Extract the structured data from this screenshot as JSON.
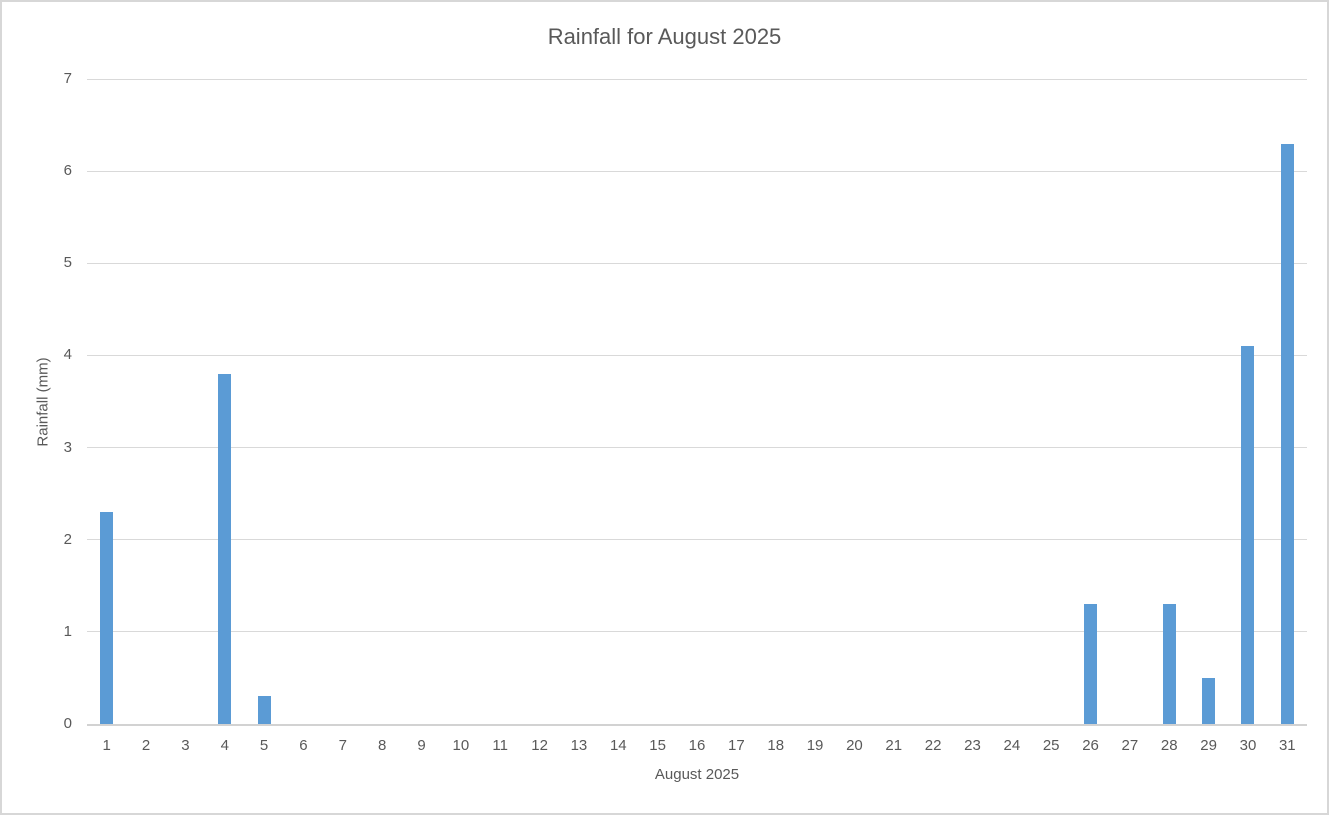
{
  "window": {
    "background_color": "#ffffff",
    "frame_border_color": "#d7d7d7"
  },
  "chart_data": {
    "type": "bar",
    "title": "Rainfall for August 2025",
    "xlabel": "August 2025",
    "ylabel": "Rainfall (mm)",
    "categories": [
      1,
      2,
      3,
      4,
      5,
      6,
      7,
      8,
      9,
      10,
      11,
      12,
      13,
      14,
      15,
      16,
      17,
      18,
      19,
      20,
      21,
      22,
      23,
      24,
      25,
      26,
      27,
      28,
      29,
      30,
      31
    ],
    "values": [
      2.3,
      0,
      0,
      3.8,
      0.3,
      0,
      0,
      0,
      0,
      0,
      0,
      0,
      0,
      0,
      0,
      0,
      0,
      0,
      0,
      0,
      0,
      0,
      0,
      0,
      0,
      1.3,
      0,
      1.3,
      0.5,
      4.1,
      6.3
    ],
    "ylim": [
      0,
      7
    ],
    "ytick_interval": 1,
    "yticks": [
      0,
      1,
      2,
      3,
      4,
      5,
      6,
      7
    ],
    "grid": true,
    "legend_position": "none",
    "bar_color": "#5b9bd5",
    "gridline_color": "#d9d9d9",
    "axis_line_color": "#d2d2d2",
    "text_color": "#595959"
  }
}
